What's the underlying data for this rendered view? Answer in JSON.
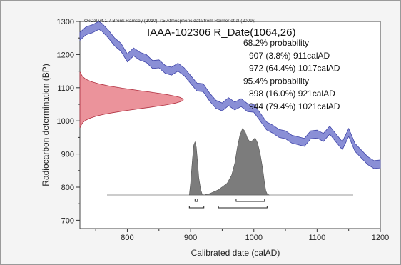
{
  "chart_data": {
    "type": "area",
    "credit": "OxCal v4.1.7 Bronk Ramsey (2010); r:5 Atmospheric data from Reimer et al (2009);",
    "title": "IAAA-102306 R_Date(1064,26)",
    "xlabel": "Calibrated date (calAD)",
    "ylabel": "Radiocarbon determination (BP)",
    "xlim": [
      725,
      1200
    ],
    "ylim": [
      675,
      1300
    ],
    "xticks": [
      "800",
      "900",
      "1000",
      "1100",
      "1200"
    ],
    "yticks": [
      "700",
      "800",
      "900",
      "1000",
      "1100",
      "1200",
      "1300"
    ],
    "probability_text": [
      {
        "text": "68.2% probability",
        "indent": false
      },
      {
        "text": "907 (3.8%) 911calAD",
        "indent": true
      },
      {
        "text": "972 (64.4%) 1017calAD",
        "indent": true
      },
      {
        "text": "95.4% probability",
        "indent": false
      },
      {
        "text": "898 (16.0%) 921calAD",
        "indent": true
      },
      {
        "text": "944 (79.4%) 1021calAD",
        "indent": true
      }
    ],
    "calibration_curve": {
      "color": "#8a8fd6",
      "x": [
        725,
        735,
        745,
        755,
        760,
        770,
        780,
        790,
        800,
        810,
        820,
        830,
        840,
        850,
        860,
        870,
        880,
        890,
        900,
        910,
        920,
        930,
        940,
        950,
        960,
        970,
        980,
        990,
        1000,
        1010,
        1020,
        1030,
        1040,
        1050,
        1060,
        1070,
        1080,
        1090,
        1100,
        1110,
        1120,
        1130,
        1140,
        1150,
        1160,
        1170,
        1180,
        1190,
        1200
      ],
      "y": [
        1255,
        1272,
        1278,
        1288,
        1282,
        1262,
        1238,
        1222,
        1190,
        1208,
        1195,
        1188,
        1170,
        1172,
        1155,
        1150,
        1162,
        1148,
        1125,
        1102,
        1100,
        1072,
        1050,
        1042,
        1058,
        1045,
        1055,
        1040,
        1038,
        1012,
        985,
        975,
        962,
        958,
        945,
        940,
        935,
        958,
        960,
        950,
        972,
        948,
        925,
        965,
        920,
        900,
        880,
        868,
        870
      ],
      "band_halfwidth": 12
    },
    "measurement": {
      "color": "#e8808a",
      "mean_bp": 1064,
      "error_bp": 26
    },
    "posterior": {
      "color": "#7c7c7c",
      "x": [
        898,
        900,
        903,
        905,
        907,
        909,
        911,
        913,
        916,
        918,
        921,
        930,
        944,
        950,
        958,
        965,
        970,
        974,
        978,
        982,
        986,
        990,
        994,
        998,
        1002,
        1006,
        1010,
        1014,
        1017,
        1019,
        1021,
        1024
      ],
      "y": [
        0.0,
        0.18,
        0.55,
        0.75,
        0.8,
        0.72,
        0.5,
        0.26,
        0.08,
        0.02,
        0.0,
        0.02,
        0.08,
        0.12,
        0.18,
        0.3,
        0.48,
        0.72,
        0.9,
        1.0,
        0.96,
        0.85,
        0.8,
        0.82,
        0.86,
        0.78,
        0.62,
        0.4,
        0.18,
        0.06,
        0.02,
        0.0
      ]
    },
    "range_brackets": [
      {
        "level": "68.2%",
        "from": 907,
        "to": 911
      },
      {
        "level": "68.2%",
        "from": 972,
        "to": 1017
      },
      {
        "level": "95.4%",
        "from": 898,
        "to": 921
      },
      {
        "level": "95.4%",
        "from": 944,
        "to": 1021
      }
    ]
  }
}
